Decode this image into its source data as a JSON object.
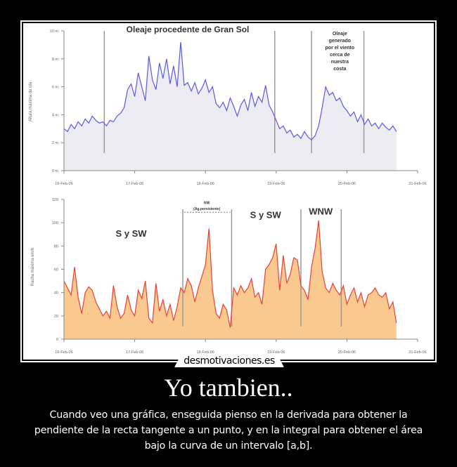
{
  "poster": {
    "title": "Yo tambien..",
    "caption": "Cuando veo una gráfica, enseguida pienso en la derivada para obtener la pendiente de la recta tangente a un punto, y en la integral para obtener el área bajo la curva de un intervalo [a,b].",
    "watermark": "desmotivaciones.es"
  },
  "colors": {
    "background": "#000000",
    "frame": "#ffffff",
    "wave_line": "#5a5ae6",
    "wave_fill": "#ececf2",
    "wind_line": "#e8403a",
    "wind_fill": "#f9c98f",
    "divider": "#9a9a9a"
  },
  "chart_data": [
    {
      "type": "area",
      "title": "",
      "xlabel": "",
      "ylabel": "Altura máxima de ola",
      "x_ticks": [
        "16-Feb-06",
        "17-Feb-06",
        "18-Feb-06",
        "19-Feb-06",
        "20-Feb-06",
        "21-Feb-06"
      ],
      "y_ticks": [
        "0 m",
        "2 m",
        "4 m",
        "6 m",
        "8 m",
        "10 m"
      ],
      "ylim": [
        0,
        10
      ],
      "grid": false,
      "annotations": [
        {
          "text": "Oleaje procedente de Gran Sol",
          "x_day": 1.75,
          "y": 9.9
        },
        {
          "text": "Oleaje generado por el viento cerca de nuestra costa",
          "x_day": 3.9,
          "y": 9.7
        }
      ],
      "dividers_day": [
        0.57,
        2.98,
        3.5,
        4.24
      ],
      "x_day": [
        0,
        0.05,
        0.1,
        0.15,
        0.2,
        0.25,
        0.3,
        0.35,
        0.4,
        0.45,
        0.5,
        0.55,
        0.6,
        0.65,
        0.7,
        0.75,
        0.8,
        0.85,
        0.9,
        0.95,
        1.0,
        1.05,
        1.1,
        1.15,
        1.2,
        1.25,
        1.3,
        1.35,
        1.4,
        1.45,
        1.5,
        1.55,
        1.6,
        1.65,
        1.7,
        1.75,
        1.8,
        1.85,
        1.9,
        1.95,
        2.0,
        2.05,
        2.1,
        2.15,
        2.2,
        2.25,
        2.3,
        2.35,
        2.4,
        2.45,
        2.5,
        2.55,
        2.6,
        2.65,
        2.7,
        2.75,
        2.8,
        2.85,
        2.9,
        2.95,
        3.0,
        3.05,
        3.1,
        3.15,
        3.2,
        3.25,
        3.3,
        3.35,
        3.4,
        3.45,
        3.5,
        3.55,
        3.6,
        3.65,
        3.7,
        3.75,
        3.8,
        3.85,
        3.9,
        3.95,
        4.0,
        4.05,
        4.1,
        4.15,
        4.2,
        4.25,
        4.3,
        4.35,
        4.4,
        4.45,
        4.5,
        4.55,
        4.6,
        4.65,
        4.7
      ],
      "values": [
        3.0,
        2.8,
        3.3,
        3.0,
        3.5,
        3.2,
        3.7,
        3.4,
        3.9,
        3.6,
        3.4,
        3.5,
        3.2,
        3.6,
        3.5,
        3.9,
        4.1,
        4.5,
        5.8,
        6.2,
        5.3,
        7.0,
        6.0,
        5.0,
        8.2,
        6.5,
        5.8,
        7.7,
        6.6,
        8.0,
        6.2,
        7.5,
        6.0,
        9.2,
        6.1,
        6.3,
        5.7,
        6.3,
        5.5,
        5.9,
        6.5,
        5.6,
        6.0,
        4.8,
        4.5,
        4.9,
        4.3,
        5.2,
        4.6,
        3.9,
        4.7,
        5.1,
        4.3,
        5.6,
        4.6,
        5.3,
        4.9,
        6.1,
        4.7,
        4.2,
        3.6,
        3.0,
        3.2,
        2.7,
        2.9,
        2.4,
        2.6,
        2.3,
        2.8,
        2.4,
        2.2,
        2.5,
        3.2,
        4.5,
        6.0,
        5.4,
        5.6,
        5.0,
        5.2,
        4.6,
        4.3,
        3.9,
        4.2,
        3.5,
        4.0,
        3.3,
        3.7,
        3.2,
        3.4,
        3.0,
        3.4,
        3.1,
        2.9,
        3.2,
        2.8
      ]
    },
    {
      "type": "area",
      "title": "",
      "xlabel": "",
      "ylabel": "Racha máxima km/h",
      "x_ticks": [
        "16-Feb-06",
        "17-Feb-06",
        "18-Feb-06",
        "19-Feb-06",
        "20-Feb-06",
        "21-Feb-06"
      ],
      "y_ticks": [
        "0",
        "20",
        "40",
        "60",
        "80",
        "100",
        "120"
      ],
      "ylim": [
        0,
        120
      ],
      "grid": false,
      "annotations": [
        {
          "text": "S y SW",
          "x_day": 0.95,
          "y": 88
        },
        {
          "text": "NW",
          "x_day": 2.02,
          "y": 116
        },
        {
          "text": "(Ag.persistente)",
          "x_day": 2.02,
          "y": 111
        },
        {
          "text": "S y SW",
          "x_day": 2.85,
          "y": 104
        },
        {
          "text": "WNW",
          "x_day": 3.63,
          "y": 107
        }
      ],
      "dividers_day": [
        1.68,
        2.37,
        3.35,
        3.92
      ],
      "x_day": [
        0,
        0.05,
        0.1,
        0.15,
        0.2,
        0.25,
        0.3,
        0.35,
        0.4,
        0.45,
        0.5,
        0.55,
        0.6,
        0.65,
        0.7,
        0.75,
        0.8,
        0.85,
        0.9,
        0.95,
        1.0,
        1.05,
        1.1,
        1.15,
        1.2,
        1.25,
        1.3,
        1.35,
        1.4,
        1.45,
        1.5,
        1.55,
        1.6,
        1.65,
        1.7,
        1.75,
        1.8,
        1.85,
        1.9,
        1.95,
        2.0,
        2.05,
        2.1,
        2.15,
        2.2,
        2.25,
        2.3,
        2.35,
        2.4,
        2.45,
        2.5,
        2.55,
        2.6,
        2.65,
        2.7,
        2.75,
        2.8,
        2.85,
        2.9,
        2.95,
        3.0,
        3.05,
        3.1,
        3.15,
        3.2,
        3.25,
        3.3,
        3.35,
        3.4,
        3.45,
        3.5,
        3.55,
        3.6,
        3.65,
        3.7,
        3.75,
        3.8,
        3.85,
        3.9,
        3.95,
        4.0,
        4.05,
        4.1,
        4.15,
        4.2,
        4.25,
        4.3,
        4.35,
        4.4,
        4.45,
        4.5,
        4.55,
        4.6,
        4.65,
        4.7
      ],
      "values": [
        50,
        44,
        38,
        62,
        36,
        22,
        40,
        45,
        42,
        32,
        26,
        20,
        24,
        18,
        46,
        28,
        18,
        22,
        38,
        25,
        20,
        42,
        35,
        50,
        18,
        14,
        48,
        24,
        34,
        20,
        30,
        16,
        28,
        44,
        40,
        52,
        46,
        32,
        44,
        54,
        64,
        95,
        42,
        22,
        18,
        30,
        25,
        10,
        44,
        38,
        46,
        40,
        44,
        52,
        36,
        40,
        30,
        60,
        64,
        70,
        82,
        42,
        72,
        48,
        56,
        70,
        68,
        46,
        42,
        34,
        62,
        78,
        102,
        58,
        44,
        40,
        48,
        42,
        38,
        46,
        30,
        38,
        44,
        32,
        40,
        28,
        38,
        40,
        44,
        38,
        36,
        40,
        26,
        32,
        14
      ]
    }
  ]
}
